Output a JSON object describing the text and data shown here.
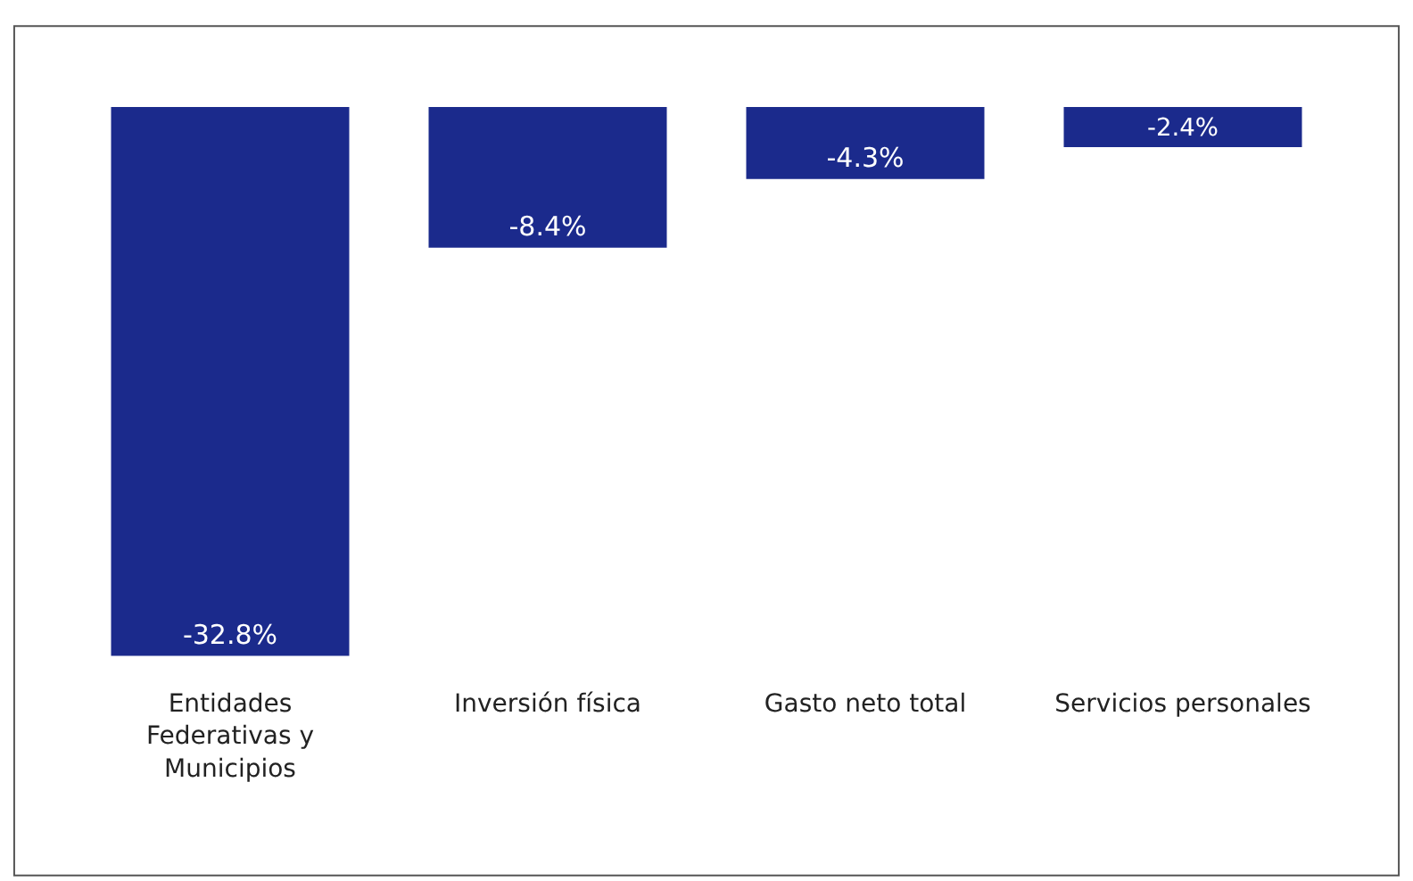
{
  "chart_data": {
    "type": "bar",
    "categories": [
      "Entidades Federativas y Municipios",
      "Inversión física",
      "Gasto neto total",
      "Servicios personales"
    ],
    "values": [
      -32.8,
      -8.4,
      -4.3,
      -2.4
    ],
    "value_labels": [
      "-32.8%",
      "-8.4%",
      "-4.3%",
      "-2.4%"
    ],
    "color": "#1b2a8c"
  }
}
